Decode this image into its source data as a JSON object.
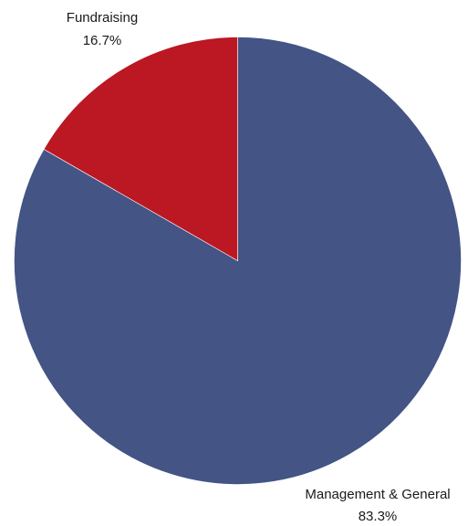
{
  "chart_data": {
    "type": "pie",
    "title": "",
    "start_angle_deg": 0,
    "direction": "clockwise",
    "slices": [
      {
        "label": "Management & General",
        "value": 83.3,
        "display": "83.3%",
        "color": "#435485"
      },
      {
        "label": "Fundraising",
        "value": 16.7,
        "display": "16.7%",
        "color": "#bb1823"
      }
    ],
    "legend": "none",
    "labels": "outside-with-percent"
  }
}
